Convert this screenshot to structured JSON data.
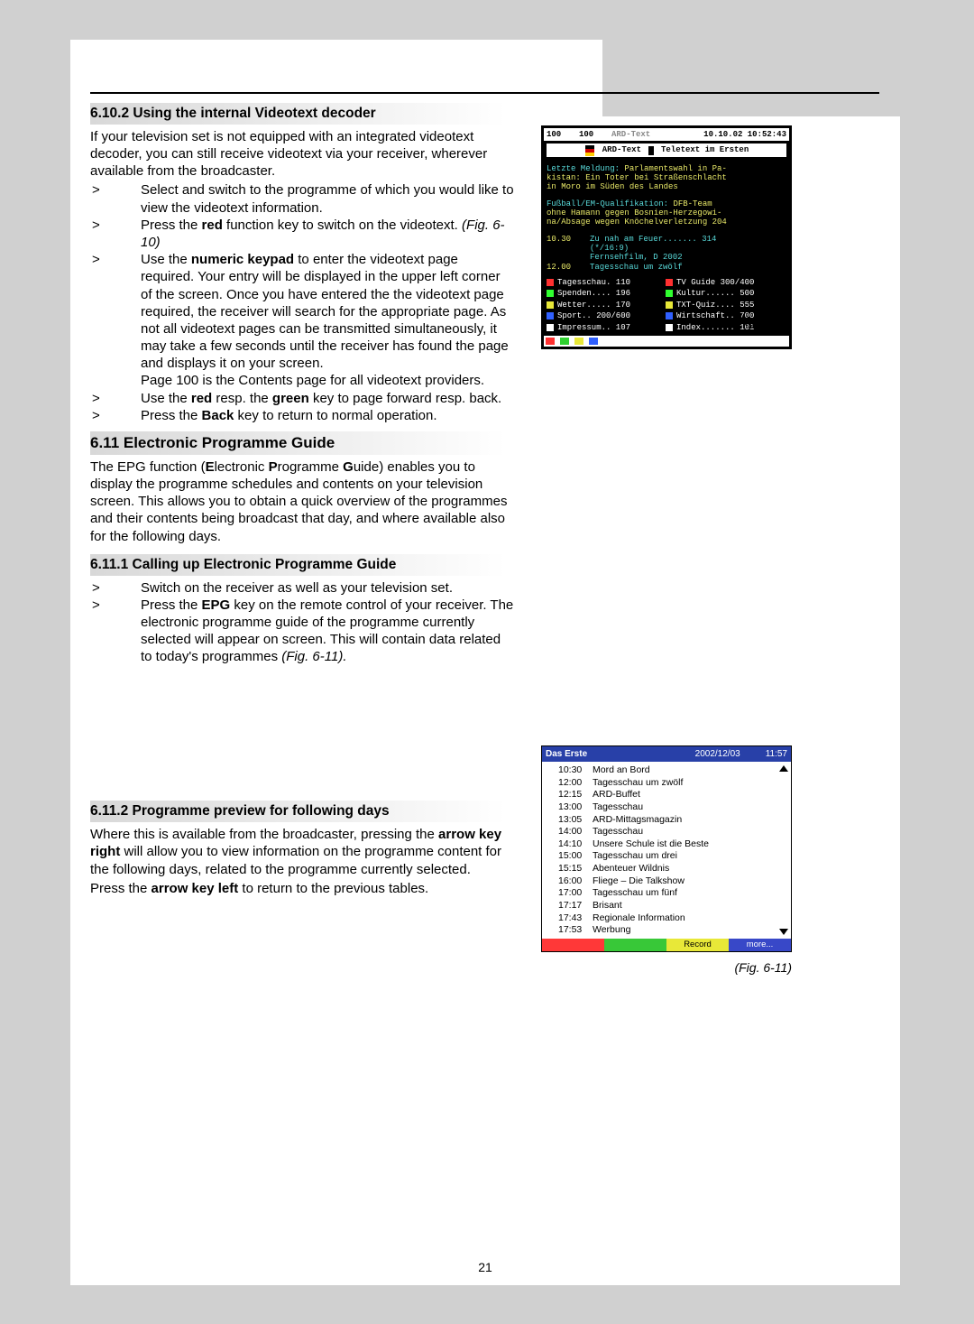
{
  "page_number": "21",
  "s1": {
    "heading": "6.10.2 Using the internal Videotext decoder",
    "intro": "If your television set is not equipped with an integrated videotext decoder, you can still receive videotext via your receiver, wherever available from the broadcaster.",
    "b1": "Select and switch to the programme of which you would like to view the videotext information.",
    "b2a": "Press the ",
    "b2b": "red",
    "b2c": " function key to switch on the videotext. ",
    "b2fig": "(Fig. 6-10)",
    "b3a": "Use the ",
    "b3b": "numeric keypad",
    "b3c": " to enter the videotext page required. Your entry will be displayed in the upper left corner of the screen. Once you have entered the the videotext page required, the receiver will search for the appropriate page. As not all videotext pages can be transmitted simultaneously, it may take a few seconds until the receiver has found the page and displays it on your screen.",
    "b3d": "Page 100 is the Contents page for all videotext providers.",
    "b4a": "Use the ",
    "b4b": "red",
    "b4c": " resp. the ",
    "b4d": "green",
    "b4e": " key to page forward resp. back.",
    "b5a": "Press the ",
    "b5b": "Back",
    "b5c": " key to return to normal operation."
  },
  "s2": {
    "heading": "6.11 Electronic Programme Guide",
    "p1a": "The EPG function (",
    "p1b": "E",
    "p1c": "lectronic ",
    "p1d": "P",
    "p1e": "rogramme ",
    "p1f": "G",
    "p1g": "uide) enables you to display the programme schedules and contents on your television screen. This allows you to obtain a quick overview of the programmes and their contents being broadcast that day, and where available also for the following days."
  },
  "s3": {
    "heading": "6.11.1 Calling up Electronic Programme Guide",
    "b1": "Switch on the receiver as well as your television set.",
    "b2a": "Press the ",
    "b2b": "EPG",
    "b2c": " key on the remote control of your receiver. The electronic programme guide of the programme currently selected will appear on screen. This will contain data related to today's programmes ",
    "b2fig": "(Fig. 6-11)."
  },
  "s4": {
    "heading": "6.11.2 Programme preview for following days",
    "p1a": "Where this is available from the broadcaster, pressing the ",
    "p1b": "arrow key right",
    "p1c": " will allow you to view information on the programme content for the following days, related to the programme currently selected.",
    "p2a": "Press the ",
    "p2b": "arrow key left",
    "p2c": " to return to the previous tables."
  },
  "fig10": {
    "caption": "(Fig. 6-10)",
    "top_l": "100",
    "top_m": "100",
    "top_brand": "ARD-Text",
    "top_r": "10.10.02 10:52:43",
    "title_l": "ARD-Text",
    "title_r": "Teletext im Ersten",
    "news_label": "Letzte Meldung:",
    "news": "Parlamentswahl in Pa-\nkistan: Ein Toter bei Straßenschlacht\nin Moro im Süden des Landes",
    "sport_label": "Fußball/EM-Qualifikation:",
    "sport": "DFB-Team\nohne Hamann gegen Bosnien-Herzegowi-\nna/Absage wegen Knöchelverletzung 204",
    "sched": [
      {
        "t": "10.30",
        "a": "Zu nah am Feuer....... 314",
        "b": "(*/16:9)",
        "c": "Fernsehfilm, D 2002"
      },
      {
        "t": "12.00",
        "a": "Tagesschau um zwölf"
      }
    ],
    "index": [
      {
        "c": "#ff3030",
        "l": "Tagesschau.  110",
        "r": "TV Guide 300/400"
      },
      {
        "c": "#30ff30",
        "l": "Spenden....  196",
        "r": "Kultur...... 500"
      },
      {
        "c": "#e8e838",
        "l": "Wetter.....  170",
        "r": "TXT-Quiz.... 555"
      },
      {
        "c": "#3060ff",
        "l": "Sport.. 200/600",
        "r": "Wirtschaft.. 700"
      },
      {
        "c": "#ffffff",
        "l": "Impressum..  107",
        "r": "Index....... 101"
      }
    ],
    "bottom_colors": [
      "#ff3030",
      "#30d030",
      "#e8e838",
      "#3060ff"
    ]
  },
  "fig11": {
    "caption": "(Fig. 6-11)",
    "channel": "Das Erste",
    "date": "2002/12/03",
    "time": "11:57",
    "programmes": [
      {
        "t": "10:30",
        "n": "Mord an Bord"
      },
      {
        "t": "12:00",
        "n": "Tagesschau um zwölf"
      },
      {
        "t": "12:15",
        "n": "ARD-Buffet"
      },
      {
        "t": "13:00",
        "n": "Tagesschau"
      },
      {
        "t": "13:05",
        "n": "ARD-Mittagsmagazin"
      },
      {
        "t": "14:00",
        "n": "Tagesschau"
      },
      {
        "t": "14:10",
        "n": "Unsere Schule ist die Beste"
      },
      {
        "t": "15:00",
        "n": "Tagesschau um drei"
      },
      {
        "t": "15:15",
        "n": "Abenteuer Wildnis"
      },
      {
        "t": "16:00",
        "n": "Fliege – Die Talkshow"
      },
      {
        "t": "17:00",
        "n": "Tagesschau um fünf"
      },
      {
        "t": "17:17",
        "n": "Brisant"
      },
      {
        "t": "17:43",
        "n": "Regionale Information"
      },
      {
        "t": "17:53",
        "n": "Werbung"
      }
    ],
    "footer": [
      {
        "bg": "#ff3838",
        "label": ""
      },
      {
        "bg": "#38c838",
        "label": ""
      },
      {
        "bg": "#e8e838",
        "label": "Record"
      },
      {
        "bg": "#3848c8",
        "label": "more..."
      }
    ]
  }
}
